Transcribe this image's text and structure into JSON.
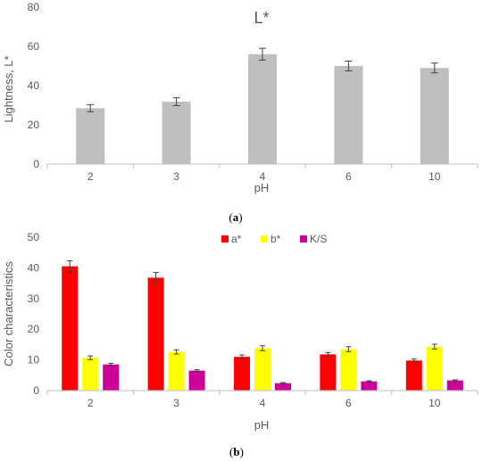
{
  "chart_data": [
    {
      "type": "bar",
      "title": "L*",
      "xlabel": "pH",
      "ylabel": "Lightness, L*",
      "categories": [
        "2",
        "3",
        "4",
        "6",
        "10"
      ],
      "ylim": [
        0,
        80
      ],
      "yticks": [
        "0",
        "20",
        "40",
        "60",
        "80"
      ],
      "grid": false,
      "legend": "none",
      "series": [
        {
          "color": "#bfbfbf",
          "values": [
            28.5,
            31.8,
            56,
            50,
            49
          ],
          "errors": [
            1.8,
            2.0,
            3.0,
            2.5,
            2.5
          ]
        }
      ],
      "caption_parts": {
        "open": "(",
        "letter": "a",
        "close": ")"
      }
    },
    {
      "type": "bar",
      "title": "",
      "xlabel": "pH",
      "ylabel": "Color characteristics",
      "categories": [
        "2",
        "3",
        "4",
        "6",
        "10"
      ],
      "ylim": [
        0,
        50
      ],
      "yticks": [
        "0",
        "10",
        "20",
        "30",
        "40",
        "50"
      ],
      "grid": false,
      "legend": "top-center",
      "series": [
        {
          "name": "a*",
          "color": "#ff0000",
          "values": [
            40.5,
            36.8,
            11.0,
            11.8,
            9.8
          ],
          "errors": [
            1.8,
            1.7,
            0.6,
            0.6,
            0.5
          ]
        },
        {
          "name": "b*",
          "color": "#ffff00",
          "values": [
            10.7,
            12.6,
            13.8,
            13.5,
            14.3
          ],
          "errors": [
            0.6,
            0.7,
            0.8,
            0.8,
            0.8
          ]
        },
        {
          "name": "K/S",
          "color": "#cc0099",
          "values": [
            8.5,
            6.5,
            2.4,
            3.0,
            3.3
          ],
          "errors": [
            0.4,
            0.3,
            0.2,
            0.2,
            0.2
          ]
        }
      ],
      "caption_parts": {
        "open": "(",
        "letter": "b",
        "close": ")"
      }
    }
  ]
}
